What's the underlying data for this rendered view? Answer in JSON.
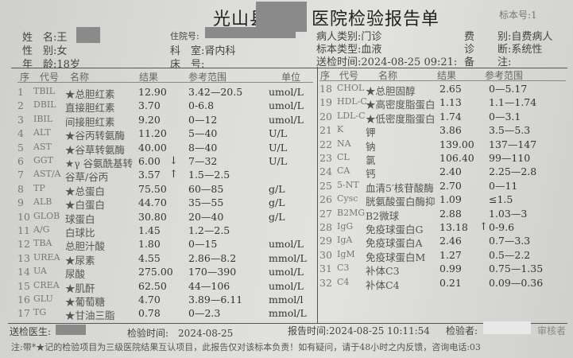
{
  "report": {
    "title_left": "光山县",
    "title_right": "医院检验报告单",
    "specimen_no_label": "标本号:1"
  },
  "patient": {
    "name": "姓　名:王",
    "sex": "性　别:女",
    "age": "年　龄:18岁",
    "inpatient_no": "住院号:",
    "department": "科　室:肾内科",
    "bed": "床　号:",
    "patient_type": "病人类别:门诊",
    "specimen_type": "标本类型:血液",
    "send_time": "送检时间:2024-08-25 09:21:",
    "fee_label": "费",
    "fee_value": "别:自费病人",
    "diag_label": "诊",
    "diag_value": "断:系统性",
    "remark_label": "备",
    "remark_value": "注:"
  },
  "left_headers": {
    "seq": "序",
    "code": "代号",
    "name": "名称",
    "result": "结果",
    "range": "参考范围",
    "unit": "单位"
  },
  "right_headers": {
    "seq": "序",
    "code": "代号",
    "name": "名称",
    "result": "结果",
    "range": "参考范围"
  },
  "left_rows": [
    {
      "seq": "1",
      "code": "TBIL",
      "name": "★总胆红素",
      "result": "12.90",
      "flag": "",
      "range": "3.42—20.5",
      "unit": "umol/L"
    },
    {
      "seq": "2",
      "code": "DBIL",
      "name": "直接胆红素",
      "result": "3.70",
      "flag": "",
      "range": "0-6.8",
      "unit": "umol/L"
    },
    {
      "seq": "3",
      "code": "IBIL",
      "name": "间接胆红素",
      "result": "9.20",
      "flag": "",
      "range": "0—12",
      "unit": "umol/L"
    },
    {
      "seq": "4",
      "code": "ALT",
      "name": "★谷丙转氨酶",
      "result": "11.20",
      "flag": "",
      "range": "5—40",
      "unit": "U/L"
    },
    {
      "seq": "5",
      "code": "AST",
      "name": "★谷草转氨酶",
      "result": "40.00",
      "flag": "",
      "range": "8—40",
      "unit": "U/L"
    },
    {
      "seq": "6",
      "code": "GGT",
      "name": "★γ 谷氨酰基转",
      "result": "6.00",
      "flag": "↓",
      "range": "7—32",
      "unit": "U/L"
    },
    {
      "seq": "7",
      "code": "AST/A",
      "name": "谷草/谷丙",
      "result": "3.57",
      "flag": "↑",
      "range": "1.5—2.5",
      "unit": ""
    },
    {
      "seq": "8",
      "code": "TP",
      "name": "★总蛋白",
      "result": "75.50",
      "flag": "",
      "range": "60—85",
      "unit": "g/L"
    },
    {
      "seq": "9",
      "code": "ALB",
      "name": "★白蛋白",
      "result": "44.70",
      "flag": "",
      "range": "35—55",
      "unit": "g/L"
    },
    {
      "seq": "10",
      "code": "GLOB",
      "name": "球蛋白",
      "result": "30.80",
      "flag": "",
      "range": "20—40",
      "unit": "g/L"
    },
    {
      "seq": "11",
      "code": "A/G",
      "name": "白球比",
      "result": "1.45",
      "flag": "",
      "range": "1.2—2.5",
      "unit": ""
    },
    {
      "seq": "12",
      "code": "TBA",
      "name": "总胆汁酸",
      "result": "1.80",
      "flag": "",
      "range": "0—15",
      "unit": "umol/L"
    },
    {
      "seq": "13",
      "code": "UREA",
      "name": "★尿素",
      "result": "4.55",
      "flag": "",
      "range": "2.86—8.2",
      "unit": "mmol/L"
    },
    {
      "seq": "14",
      "code": "UA",
      "name": "尿酸",
      "result": "275.00",
      "flag": "",
      "range": "170—390",
      "unit": "umol/L"
    },
    {
      "seq": "15",
      "code": "CREA",
      "name": "★肌酐",
      "result": "62.50",
      "flag": "",
      "range": "44—106",
      "unit": "umol/L"
    },
    {
      "seq": "16",
      "code": "GLU",
      "name": "★葡萄糖",
      "result": "4.70",
      "flag": "",
      "range": "3.89—6.11",
      "unit": "mmol/l"
    },
    {
      "seq": "17",
      "code": "TG",
      "name": "★甘油三脂",
      "result": "0.78",
      "flag": "",
      "range": "0—2.3",
      "unit": "mmol/L"
    }
  ],
  "right_rows": [
    {
      "seq": "18",
      "code": "CHOL",
      "name": "★总胆固醇",
      "result": "2.65",
      "flag": "",
      "range": "0—5.17"
    },
    {
      "seq": "19",
      "code": "HDL-C",
      "name": "★高密度脂蛋白",
      "result": "1.13",
      "flag": "",
      "range": "1.1—1.74"
    },
    {
      "seq": "20",
      "code": "LDL-C",
      "name": "★低密度脂蛋白",
      "result": "1.74",
      "flag": "",
      "range": "0—3.1"
    },
    {
      "seq": "21",
      "code": "K",
      "name": "钾",
      "result": "3.86",
      "flag": "",
      "range": "3.5—5.3"
    },
    {
      "seq": "22",
      "code": "NA",
      "name": "钠",
      "result": "139.00",
      "flag": "",
      "range": "137—147"
    },
    {
      "seq": "23",
      "code": "CL",
      "name": "氯",
      "result": "106.40",
      "flag": "",
      "range": "99—110"
    },
    {
      "seq": "24",
      "code": "CA",
      "name": "钙",
      "result": "2.40",
      "flag": "",
      "range": "2.25—2.8"
    },
    {
      "seq": "25",
      "code": "5-NT",
      "name": "血清5′核苷酸酶",
      "result": "2.70",
      "flag": "",
      "range": "0—11"
    },
    {
      "seq": "26",
      "code": "Cysc",
      "name": "胱氨酸蛋白酶抑",
      "result": "1.09",
      "flag": "",
      "range": "≤1.5"
    },
    {
      "seq": "27",
      "code": "B2MG",
      "name": "B2微球",
      "result": "2.88",
      "flag": "",
      "range": "1.03—3"
    },
    {
      "seq": "28",
      "code": "IgG",
      "name": "免疫球蛋白G",
      "result": "13.18",
      "flag": "↑",
      "range": "0-9.6"
    },
    {
      "seq": "29",
      "code": "IgA",
      "name": "免疫球蛋白A",
      "result": "2.46",
      "flag": "",
      "range": "0.7—3.3"
    },
    {
      "seq": "30",
      "code": "IgM",
      "name": "免疫球蛋白M",
      "result": "1.27",
      "flag": "",
      "range": "0.5—2.2"
    },
    {
      "seq": "31",
      "code": "C3",
      "name": "补体C3",
      "result": "0.99",
      "flag": "",
      "range": "0.75—1.35"
    },
    {
      "seq": "32",
      "code": "C4",
      "name": "补体C4",
      "result": "0.21",
      "flag": "",
      "range": "0.09—0.36"
    }
  ],
  "footer": {
    "doctor": "送检医生:",
    "test_time": "检验时间:　2024-08-25",
    "report_time": "报告时间:2024-08-25 10:11:54",
    "tester": "检验者:",
    "reviewer": "审核者",
    "note": "注:带*★记的检验项目为三级医院结果互认项目，此报告仅对该标本负责！如有疑问，请于48小时之内反馈，咨询电话:03"
  }
}
